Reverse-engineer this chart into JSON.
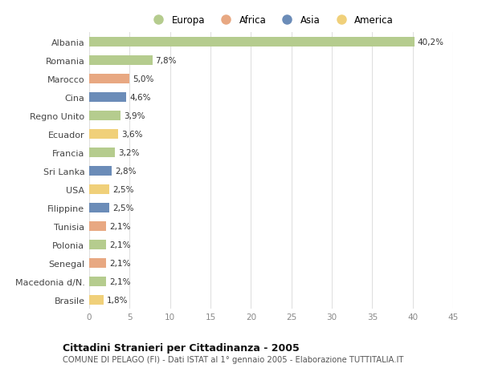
{
  "countries": [
    "Albania",
    "Romania",
    "Marocco",
    "Cina",
    "Regno Unito",
    "Ecuador",
    "Francia",
    "Sri Lanka",
    "USA",
    "Filippine",
    "Tunisia",
    "Polonia",
    "Senegal",
    "Macedonia d/N.",
    "Brasile"
  ],
  "values": [
    40.2,
    7.8,
    5.0,
    4.6,
    3.9,
    3.6,
    3.2,
    2.8,
    2.5,
    2.5,
    2.1,
    2.1,
    2.1,
    2.1,
    1.8
  ],
  "labels": [
    "40,2%",
    "7,8%",
    "5,0%",
    "4,6%",
    "3,9%",
    "3,6%",
    "3,2%",
    "2,8%",
    "2,5%",
    "2,5%",
    "2,1%",
    "2,1%",
    "2,1%",
    "2,1%",
    "1,8%"
  ],
  "categories": [
    "Europa",
    "Europa",
    "Africa",
    "Asia",
    "Europa",
    "America",
    "Europa",
    "Asia",
    "America",
    "Asia",
    "Africa",
    "Europa",
    "Africa",
    "Europa",
    "America"
  ],
  "colors": {
    "Europa": "#b5cc8e",
    "Africa": "#e8a882",
    "Asia": "#6b8cb8",
    "America": "#f0d07a"
  },
  "legend_order": [
    "Europa",
    "Africa",
    "Asia",
    "America"
  ],
  "title": "Cittadini Stranieri per Cittadinanza - 2005",
  "subtitle": "COMUNE DI PELAGO (FI) - Dati ISTAT al 1° gennaio 2005 - Elaborazione TUTTITALIA.IT",
  "xlim": [
    0,
    45
  ],
  "xticks": [
    0,
    5,
    10,
    15,
    20,
    25,
    30,
    35,
    40,
    45
  ],
  "background_color": "#ffffff",
  "grid_color": "#e0e0e0",
  "bar_height": 0.55
}
